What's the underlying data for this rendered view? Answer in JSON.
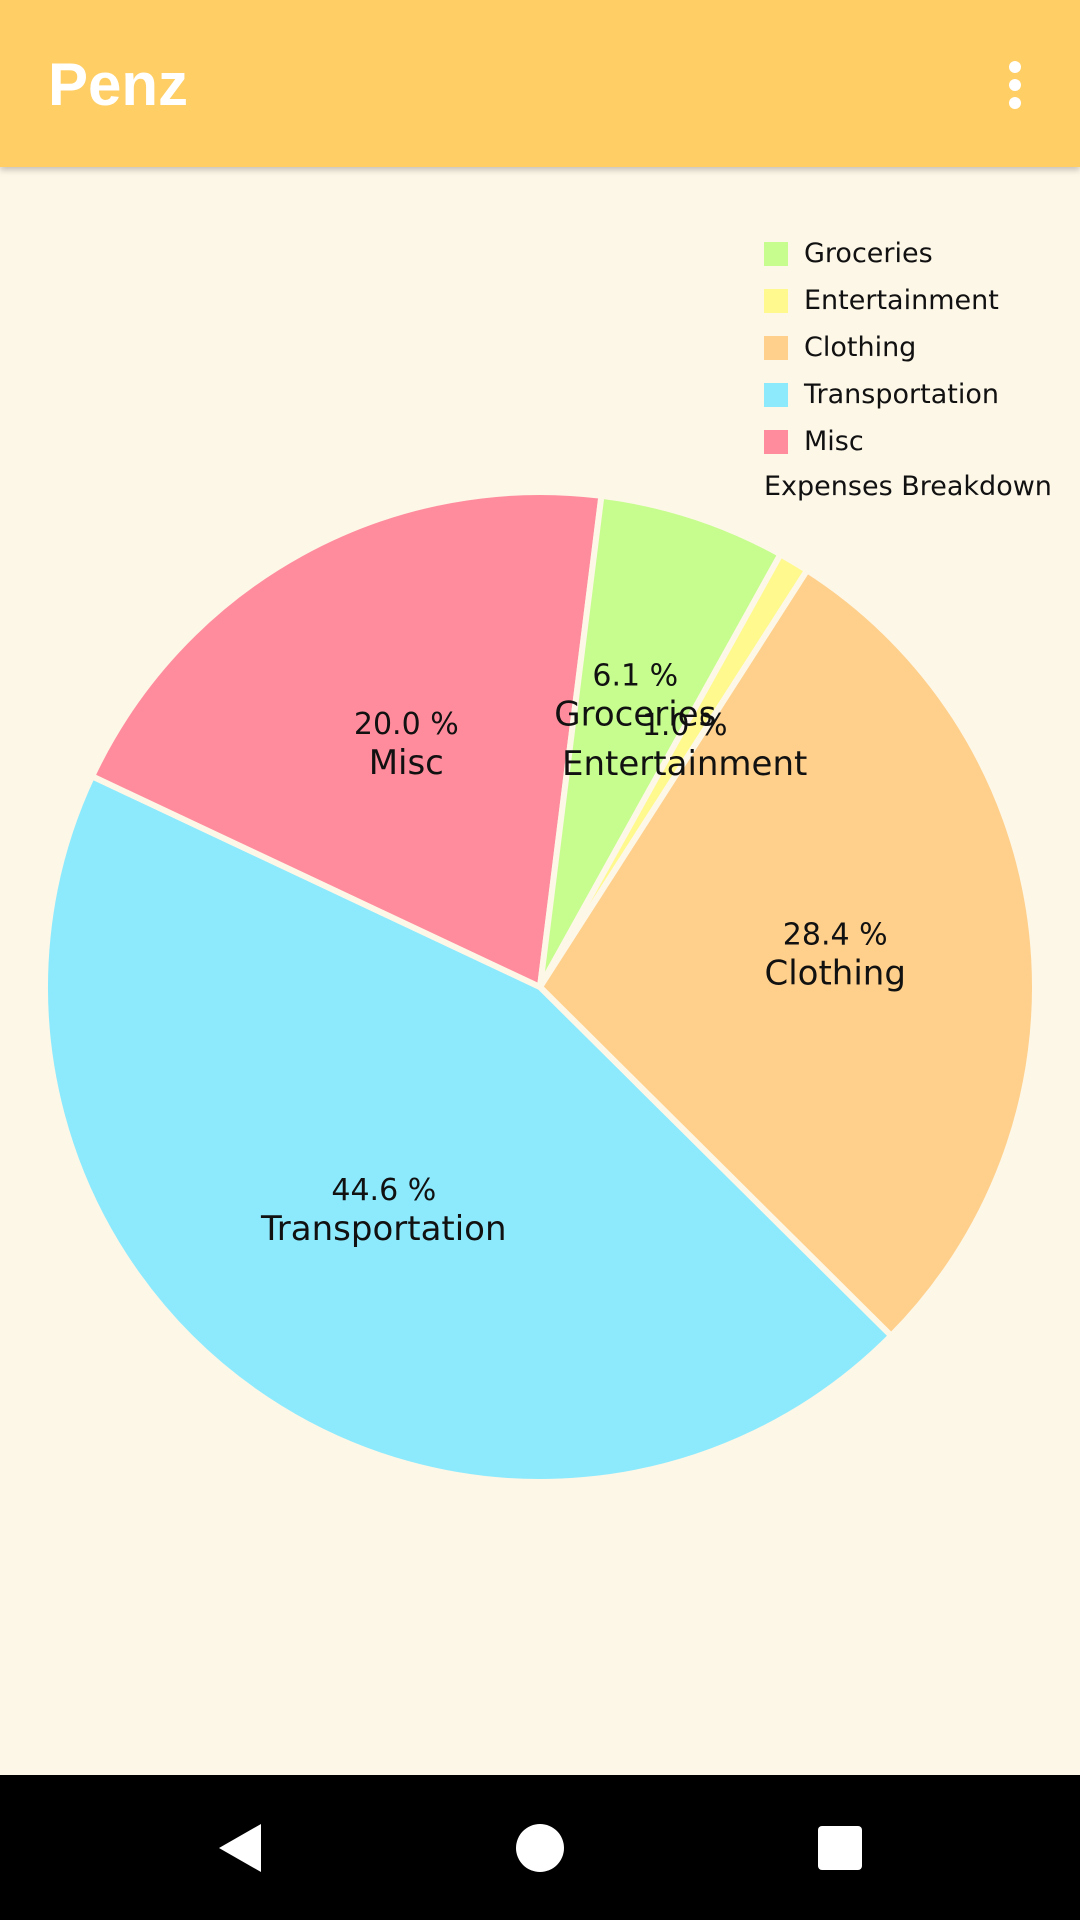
{
  "app": {
    "title": "Penz",
    "overflow_icon": "more-vert-icon"
  },
  "colors": {
    "appbar": "#FFCE64",
    "background": "#FDF7E8",
    "navbar": "#000000"
  },
  "legend": {
    "items": [
      {
        "label": "Groceries",
        "color": "#C6FD8E"
      },
      {
        "label": "Entertainment",
        "color": "#FFF98E"
      },
      {
        "label": "Clothing",
        "color": "#FFD08C"
      },
      {
        "label": "Transportation",
        "color": "#8DEAFD"
      },
      {
        "label": "Misc",
        "color": "#FF8C9D"
      }
    ],
    "description": "Expenses Breakdown"
  },
  "chart_data": {
    "type": "pie",
    "title": "",
    "description": "Expenses Breakdown",
    "legend_position": "top-right",
    "slices": [
      {
        "label": "Groceries",
        "value": 6.1,
        "value_label": "6.1 %",
        "color": "#C6FD8E"
      },
      {
        "label": "Entertainment",
        "value": 1.0,
        "value_label": "1.0 %",
        "color": "#FFF98E"
      },
      {
        "label": "Clothing",
        "value": 28.4,
        "value_label": "28.4 %",
        "color": "#FFD08C"
      },
      {
        "label": "Transportation",
        "value": 44.6,
        "value_label": "44.6 %",
        "color": "#8DEAFD"
      },
      {
        "label": "Misc",
        "value": 20.0,
        "value_label": "20.0 %",
        "color": "#FF8C9D"
      }
    ]
  },
  "navbar": {
    "back_icon": "back-triangle-icon",
    "home_icon": "home-circle-icon",
    "recents_icon": "recents-square-icon"
  }
}
